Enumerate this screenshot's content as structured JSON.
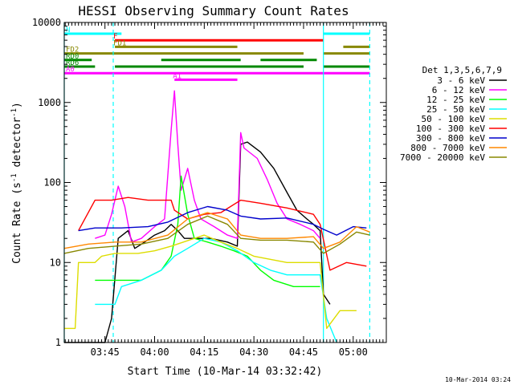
{
  "chart_data": {
    "type": "line",
    "title": "HESSI Observing Summary Count Rates",
    "xlabel": "Start Time (10-Mar-14 03:32:42)",
    "ylabel": "Count Rate (s",
    "ylabel_sup": "-1",
    "ylabel_mid": " detector",
    "ylabel_sup2": "-1",
    "ylabel_end": ")",
    "x_scale": "time",
    "xlim": [
      "03:32:42",
      "05:10:00"
    ],
    "x_ticks": [
      "03:45",
      "04:00",
      "04:15",
      "04:30",
      "04:45",
      "05:00"
    ],
    "y_scale": "log",
    "ylim": [
      1,
      10000
    ],
    "y_ticks": [
      "1",
      "10",
      "100",
      "1000",
      "10000"
    ],
    "timestamp": "10-Mar-2014 03:24",
    "legend_title": "Det 1,3,5,6,7,9",
    "legend_placement": "right",
    "series": [
      {
        "name": "3 - 6 keV",
        "color": "#000000",
        "points": [
          [
            "03:32:42",
            1
          ],
          [
            "03:39:00",
            1
          ],
          [
            "03:40:30",
            1
          ],
          [
            "03:45:00",
            1
          ],
          [
            "03:47:00",
            2
          ],
          [
            "03:49:00",
            20
          ],
          [
            "03:52:00",
            25
          ],
          [
            "03:54:00",
            15
          ],
          [
            "03:57:00",
            18
          ],
          [
            "04:00:00",
            22
          ],
          [
            "04:03:00",
            25
          ],
          [
            "04:05:00",
            30
          ],
          [
            "04:07:00",
            25
          ],
          [
            "04:09:00",
            20
          ],
          [
            "04:12:00",
            20
          ],
          [
            "04:17:00",
            20
          ],
          [
            "04:22:00",
            18
          ],
          [
            "04:25:00",
            16
          ],
          [
            "04:26:00",
            300
          ],
          [
            "04:28:00",
            320
          ],
          [
            "04:32:00",
            240
          ],
          [
            "04:36:00",
            150
          ],
          [
            "04:40:00",
            75
          ],
          [
            "04:43:00",
            45
          ],
          [
            "04:46:00",
            35
          ],
          [
            "04:48:00",
            30
          ],
          [
            "04:50:00",
            25
          ],
          [
            "04:51:00",
            4
          ],
          [
            "04:53:00",
            3
          ]
        ]
      },
      {
        "name": "6 - 12 keV",
        "color": "#ff00ff",
        "points": [
          [
            "03:42:00",
            20
          ],
          [
            "03:45:00",
            22
          ],
          [
            "03:47:00",
            40
          ],
          [
            "03:49:00",
            90
          ],
          [
            "03:51:00",
            50
          ],
          [
            "03:53:00",
            18
          ],
          [
            "03:56:00",
            20
          ],
          [
            "04:00:00",
            28
          ],
          [
            "04:03:00",
            35
          ],
          [
            "04:05:00",
            450
          ],
          [
            "04:06:00",
            1400
          ],
          [
            "04:07:00",
            300
          ],
          [
            "04:08:00",
            80
          ],
          [
            "04:10:00",
            150
          ],
          [
            "04:12:00",
            60
          ],
          [
            "04:14:00",
            35
          ],
          [
            "04:18:00",
            28
          ],
          [
            "04:22:00",
            22
          ],
          [
            "04:25:00",
            20
          ],
          [
            "04:26:00",
            420
          ],
          [
            "04:27:00",
            270
          ],
          [
            "04:31:00",
            200
          ],
          [
            "04:34:00",
            110
          ],
          [
            "04:37:00",
            55
          ],
          [
            "04:40:00",
            35
          ],
          [
            "04:44:00",
            30
          ],
          [
            "04:48:00",
            25
          ],
          [
            "04:50:00",
            20
          ]
        ]
      },
      {
        "name": "12 - 25 keV",
        "color": "#00ff00",
        "points": [
          [
            "03:42:00",
            6
          ],
          [
            "03:50:00",
            6
          ],
          [
            "03:56:00",
            6
          ],
          [
            "04:02:00",
            8
          ],
          [
            "04:05:00",
            12
          ],
          [
            "04:07:00",
            30
          ],
          [
            "04:08:00",
            120
          ],
          [
            "04:10:00",
            40
          ],
          [
            "04:12:00",
            20
          ],
          [
            "04:16:00",
            18
          ],
          [
            "04:20:00",
            16
          ],
          [
            "04:24:00",
            14
          ],
          [
            "04:28:00",
            12
          ],
          [
            "04:32:00",
            8
          ],
          [
            "04:36:00",
            6
          ],
          [
            "04:42:00",
            5
          ],
          [
            "04:48:00",
            5
          ],
          [
            "04:50:00",
            5
          ]
        ]
      },
      {
        "name": "25 - 50 keV",
        "color": "#00ffff",
        "points": [
          [
            "03:42:00",
            3
          ],
          [
            "03:48:00",
            3
          ],
          [
            "03:50:00",
            5
          ],
          [
            "03:56:00",
            6
          ],
          [
            "04:02:00",
            8
          ],
          [
            "04:06:00",
            12
          ],
          [
            "04:10:00",
            15
          ],
          [
            "04:15:00",
            20
          ],
          [
            "04:20:00",
            18
          ],
          [
            "04:25:00",
            14
          ],
          [
            "04:30:00",
            10
          ],
          [
            "04:35:00",
            8
          ],
          [
            "04:40:00",
            7
          ],
          [
            "04:45:00",
            7
          ],
          [
            "04:50:00",
            7
          ],
          [
            "04:52:00",
            2
          ],
          [
            "04:55:00",
            1
          ]
        ]
      },
      {
        "name": "50 - 100 keV",
        "color": "#dddd00",
        "points": [
          [
            "03:32:42",
            1.5
          ],
          [
            "03:36:00",
            1.5
          ],
          [
            "03:37:00",
            10
          ],
          [
            "03:42:00",
            10
          ],
          [
            "03:44:00",
            12
          ],
          [
            "03:48:00",
            13
          ],
          [
            "03:55:00",
            13
          ],
          [
            "04:00:00",
            14
          ],
          [
            "04:05:00",
            16
          ],
          [
            "04:15:00",
            22
          ],
          [
            "04:20:00",
            18
          ],
          [
            "04:25:00",
            15
          ],
          [
            "04:30:00",
            12
          ],
          [
            "04:40:00",
            10
          ],
          [
            "04:50:00",
            10
          ],
          [
            "04:52:00",
            1.5
          ],
          [
            "04:56:00",
            2.5
          ],
          [
            "05:01:00",
            2.5
          ]
        ]
      },
      {
        "name": "100 - 300 keV",
        "color": "#ff0000",
        "points": [
          [
            "03:37:00",
            25
          ],
          [
            "03:42:00",
            60
          ],
          [
            "03:47:00",
            60
          ],
          [
            "03:52:00",
            65
          ],
          [
            "03:58:00",
            60
          ],
          [
            "04:05:00",
            60
          ],
          [
            "04:06:00",
            45
          ],
          [
            "04:10:00",
            35
          ],
          [
            "04:15:00",
            40
          ],
          [
            "04:20:00",
            42
          ],
          [
            "04:26:00",
            60
          ],
          [
            "04:32:00",
            55
          ],
          [
            "04:40:00",
            48
          ],
          [
            "04:48:00",
            40
          ],
          [
            "04:50:00",
            30
          ],
          [
            "04:53:00",
            8
          ],
          [
            "04:58:00",
            10
          ],
          [
            "05:04:00",
            9
          ]
        ]
      },
      {
        "name": "300 - 800 keV",
        "color": "#0000cc",
        "points": [
          [
            "03:37:00",
            25
          ],
          [
            "03:42:00",
            27
          ],
          [
            "03:50:00",
            27
          ],
          [
            "03:58:00",
            28
          ],
          [
            "04:04:00",
            32
          ],
          [
            "04:10:00",
            42
          ],
          [
            "04:16:00",
            50
          ],
          [
            "04:22:00",
            45
          ],
          [
            "04:26:00",
            38
          ],
          [
            "04:32:00",
            35
          ],
          [
            "04:40:00",
            36
          ],
          [
            "04:48:00",
            30
          ],
          [
            "04:51:00",
            26
          ],
          [
            "04:55:00",
            22
          ],
          [
            "05:00:00",
            28
          ],
          [
            "05:04:00",
            27
          ]
        ]
      },
      {
        "name": "800 - 7000 keV",
        "color": "#ff8800",
        "points": [
          [
            "03:32:42",
            15
          ],
          [
            "03:40:00",
            17
          ],
          [
            "03:48:00",
            18
          ],
          [
            "03:56:00",
            18
          ],
          [
            "04:04:00",
            22
          ],
          [
            "04:10:00",
            35
          ],
          [
            "04:16:00",
            42
          ],
          [
            "04:22:00",
            35
          ],
          [
            "04:26:00",
            22
          ],
          [
            "04:32:00",
            20
          ],
          [
            "04:40:00",
            20
          ],
          [
            "04:48:00",
            21
          ],
          [
            "04:51:00",
            15
          ],
          [
            "04:56:00",
            18
          ],
          [
            "05:01:00",
            28
          ],
          [
            "05:05:00",
            24
          ]
        ]
      },
      {
        "name": "7000 - 20000 keV",
        "color": "#888800",
        "points": [
          [
            "03:32:42",
            13
          ],
          [
            "03:40:00",
            15
          ],
          [
            "03:48:00",
            16
          ],
          [
            "03:56:00",
            17
          ],
          [
            "04:04:00",
            20
          ],
          [
            "04:10:00",
            30
          ],
          [
            "04:16:00",
            38
          ],
          [
            "04:22:00",
            30
          ],
          [
            "04:26:00",
            20
          ],
          [
            "04:32:00",
            19
          ],
          [
            "04:40:00",
            19
          ],
          [
            "04:48:00",
            18
          ],
          [
            "04:51:00",
            13
          ],
          [
            "04:56:00",
            17
          ],
          [
            "05:01:00",
            24
          ],
          [
            "05:05:00",
            22
          ]
        ]
      }
    ],
    "flag_bars": [
      {
        "label": "N",
        "color": "#00ffff",
        "segments": [
          [
            "03:32:42",
            "03:50:00"
          ],
          [
            "04:51:00",
            "05:05:00"
          ]
        ]
      },
      {
        "label": "F",
        "color": "#ff0000",
        "segments": [
          [
            "03:48:00",
            "04:51:00"
          ]
        ]
      },
      {
        "label": "FD1",
        "color": "#888800",
        "segments": [
          [
            "03:48:00",
            "04:25:00"
          ],
          [
            "04:57:00",
            "05:05:00"
          ]
        ]
      },
      {
        "label": "FD2",
        "color": "#888800",
        "segments": [
          [
            "03:32:42",
            "04:45:00"
          ],
          [
            "04:51:00",
            "05:05:00"
          ]
        ]
      },
      {
        "label": "RD0",
        "color": "#008800",
        "segments": [
          [
            "03:32:42",
            "03:41:00"
          ],
          [
            "04:02:00",
            "04:26:00"
          ],
          [
            "04:32:00",
            "04:49:00"
          ]
        ]
      },
      {
        "label": "RD6",
        "color": "#008800",
        "segments": [
          [
            "03:32:42",
            "03:42:00"
          ],
          [
            "03:48:00",
            "04:45:00"
          ],
          [
            "04:51:00",
            "05:05:00"
          ]
        ]
      },
      {
        "label": "A0",
        "color": "#ff00ff",
        "segments": [
          [
            "03:32:42",
            "05:05:00"
          ]
        ]
      },
      {
        "label": "A1",
        "color": "#ff00ff",
        "segments": [
          [
            "04:06:00",
            "04:25:00"
          ]
        ]
      }
    ],
    "vlines": [
      {
        "t": "03:32:42",
        "style": "solid",
        "color": "#00ffff"
      },
      {
        "t": "03:47:30",
        "style": "dashed",
        "color": "#00ffff"
      },
      {
        "t": "04:51:00",
        "style": "solid",
        "color": "#00ffff"
      },
      {
        "t": "05:05:00",
        "style": "dashed",
        "color": "#00ffff"
      }
    ]
  }
}
